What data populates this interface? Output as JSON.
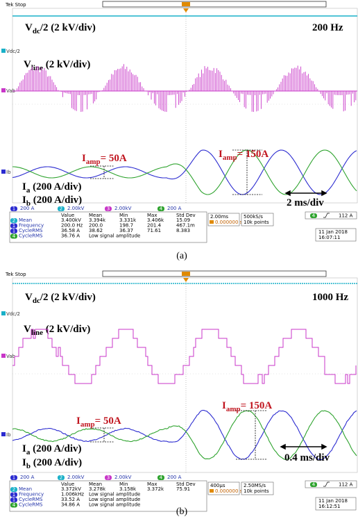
{
  "panels": [
    {
      "status": "Tek Stop",
      "frequency": "200 Hz",
      "vdc": {
        "main": "V",
        "sub": "dc",
        "rest": "/2 (2 kV/div)"
      },
      "vline": {
        "main": "V",
        "sub": "line",
        "rest": " (2 kV/div)"
      },
      "ia": {
        "main": "I",
        "sub": "a",
        "rest": " (200 A/div)"
      },
      "ib": {
        "main": "I",
        "sub": "b",
        "rest": " (200 A/div)"
      },
      "iamp_low": {
        "main": "I",
        "sub": "amp",
        "rest": "=  50A"
      },
      "iamp_high": {
        "main": "I",
        "sub": "amp",
        "rest": "=  150A"
      },
      "time_div": "2 ms/div",
      "markers": [
        "Vdc/2",
        "Vab",
        "Ib"
      ],
      "channels": [
        {
          "num": "1",
          "scale": "200 A"
        },
        {
          "num": "2",
          "scale": "2.00kV"
        },
        {
          "num": "3",
          "scale": "2.00kV"
        },
        {
          "num": "4",
          "scale": "200 A"
        }
      ],
      "table": {
        "header": [
          "Value",
          "Mean",
          "Min",
          "Max",
          "Std Dev"
        ],
        "rows": [
          {
            "ch": "2",
            "name": "Mean",
            "cells": [
              "3.400kV",
              "3.394k",
              "3.331k",
              "3.406k",
              "15.09"
            ]
          },
          {
            "ch": "1",
            "name": "Frequency",
            "cells": [
              "200.0 Hz",
              "200.0",
              "198.7",
              "201.4",
              "467.1m"
            ]
          },
          {
            "ch": "1",
            "name": "CycleRMS",
            "cells": [
              "36.58 A",
              "38.62",
              "36.37",
              "71.61",
              "8.383"
            ]
          },
          {
            "ch": "4",
            "name": "CycleRMS",
            "cells": [
              "36.76 A",
              "Low signal amplitude"
            ]
          }
        ]
      },
      "timebase": "2.00ms",
      "trigger_pos": "0.000000 s",
      "sample_rate": "500kS/s",
      "record": "10k points",
      "trigger_ch": "4",
      "trigger_level": "112 A",
      "date": "11 Jan 2018",
      "time": "16:07:11",
      "caption": "(a)"
    },
    {
      "status": "Tek Stop",
      "frequency": "1000 Hz",
      "vdc": {
        "main": "V",
        "sub": "dc",
        "rest": "/2 (2 kV/div)"
      },
      "vline": {
        "main": "V",
        "sub": "line",
        "rest": " (2 kV/div)"
      },
      "ia": {
        "main": "I",
        "sub": "a",
        "rest": " (200 A/div)"
      },
      "ib": {
        "main": "I",
        "sub": "b",
        "rest": " (200 A/div)"
      },
      "iamp_low": {
        "main": "I",
        "sub": "amp",
        "rest": "=  50A"
      },
      "iamp_high": {
        "main": "I",
        "sub": "amp",
        "rest": "=  150A"
      },
      "time_div": "0.4 ms/div",
      "markers": [
        "Vdc/2",
        "Vab",
        "Ib"
      ],
      "channels": [
        {
          "num": "1",
          "scale": "200 A"
        },
        {
          "num": "2",
          "scale": "2.00kV"
        },
        {
          "num": "3",
          "scale": "2.00kV"
        },
        {
          "num": "4",
          "scale": "200 A"
        }
      ],
      "table": {
        "header": [
          "Value",
          "Mean",
          "Min",
          "Max",
          "Std Dev"
        ],
        "rows": [
          {
            "ch": "2",
            "name": "Mean",
            "cells": [
              "3.372kV",
              "3.278k",
              "3.158k",
              "3.372k",
              "75.91"
            ]
          },
          {
            "ch": "1",
            "name": "Frequency",
            "cells": [
              "1.006kHz",
              "Low signal amplitude"
            ]
          },
          {
            "ch": "1",
            "name": "CycleRMS",
            "cells": [
              "33.52 A",
              "Low signal amplitude"
            ]
          },
          {
            "ch": "4",
            "name": "CycleRMS",
            "cells": [
              "34.86 A",
              "Low signal amplitude"
            ]
          }
        ]
      },
      "timebase": "400µs",
      "trigger_pos": "0.000000 s",
      "sample_rate": "2.50MS/s",
      "record": "10k points",
      "trigger_ch": "4",
      "trigger_level": "112 A",
      "date": "11 Jan 2018",
      "time": "16:12:51",
      "caption": "(b)"
    }
  ]
}
